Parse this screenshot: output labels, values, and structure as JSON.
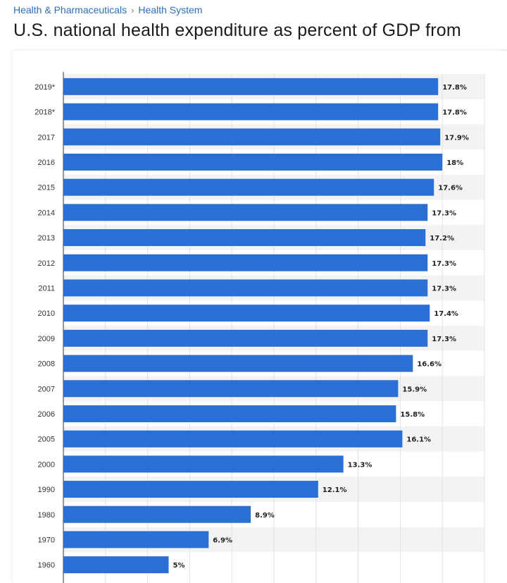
{
  "breadcrumb": {
    "items": [
      "Health & Pharmaceuticals",
      "Health System"
    ],
    "separator": "›"
  },
  "page_title": "U.S. national health expenditure as percent of GDP from",
  "colors": {
    "bar": "#2a6fd6",
    "band": "#f3f3f3",
    "grid": "#e2e2e2",
    "link": "#2b6fb6"
  },
  "chart_data": {
    "type": "bar",
    "orientation": "horizontal",
    "categories": [
      "2019*",
      "2018*",
      "2017",
      "2016",
      "2015",
      "2014",
      "2013",
      "2012",
      "2011",
      "2010",
      "2009",
      "2008",
      "2007",
      "2006",
      "2005",
      "2000",
      "1990",
      "1980",
      "1970",
      "1960"
    ],
    "values": [
      17.8,
      17.8,
      17.9,
      18,
      17.6,
      17.3,
      17.2,
      17.3,
      17.3,
      17.4,
      17.3,
      16.6,
      15.9,
      15.8,
      16.1,
      13.3,
      12.1,
      8.9,
      6.9,
      5
    ],
    "value_labels": [
      "17.8%",
      "17.8%",
      "17.9%",
      "18%",
      "17.6%",
      "17.3%",
      "17.2%",
      "17.3%",
      "17.3%",
      "17.4%",
      "17.3%",
      "16.6%",
      "15.9%",
      "15.8%",
      "16.1%",
      "13.3%",
      "12.1%",
      "8.9%",
      "6.9%",
      "5%"
    ],
    "xlim": [
      0,
      20
    ],
    "grid": true,
    "legend": "none"
  }
}
